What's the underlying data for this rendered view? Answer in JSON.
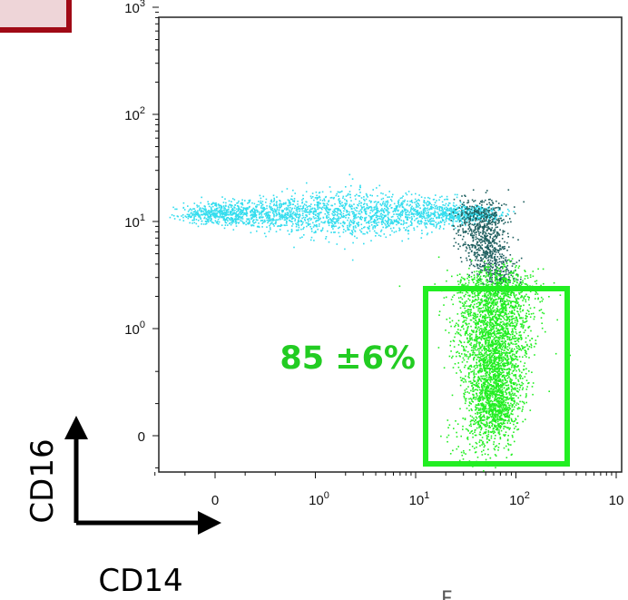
{
  "chart_data": {
    "type": "scatter",
    "title": "",
    "xlabel": "CD14",
    "ylabel": "CD16",
    "x_ticks": [
      {
        "value": 0,
        "label": "0"
      },
      {
        "value": 1,
        "label": "10",
        "exp": "0"
      },
      {
        "value": 10,
        "label": "10",
        "exp": "1"
      },
      {
        "value": 100,
        "label": "10",
        "exp": "2"
      },
      {
        "value": 1000,
        "label": "10",
        "exp": ""
      }
    ],
    "y_ticks": [
      {
        "value": 0,
        "label": "0"
      },
      {
        "value": 1,
        "label": "10",
        "exp": "0"
      },
      {
        "value": 10,
        "label": "10",
        "exp": "1"
      },
      {
        "value": 100,
        "label": "10",
        "exp": "2"
      },
      {
        "value": 1000,
        "label": "10",
        "exp": "3"
      }
    ],
    "xscale": "biexponential",
    "yscale": "biexponential",
    "grid": false,
    "populations": [
      {
        "color": "#33ddee",
        "center": [
          4,
          12
        ],
        "spread": "broad",
        "count": 2600
      },
      {
        "color": "#1f5f5f",
        "center": [
          55,
          4
        ],
        "spread": "diagonal",
        "count": 900
      },
      {
        "color": "#22ee22",
        "center": [
          60,
          0.6
        ],
        "spread": "vertical",
        "count": 3400
      }
    ],
    "gate": {
      "x_range": [
        15,
        300
      ],
      "y_range": [
        -0.2,
        2.5
      ],
      "color": "#22ee22"
    },
    "annotations": [
      {
        "text": "85 ±6%",
        "color": "#22cc22"
      }
    ]
  },
  "footer": {
    "text": "F"
  }
}
